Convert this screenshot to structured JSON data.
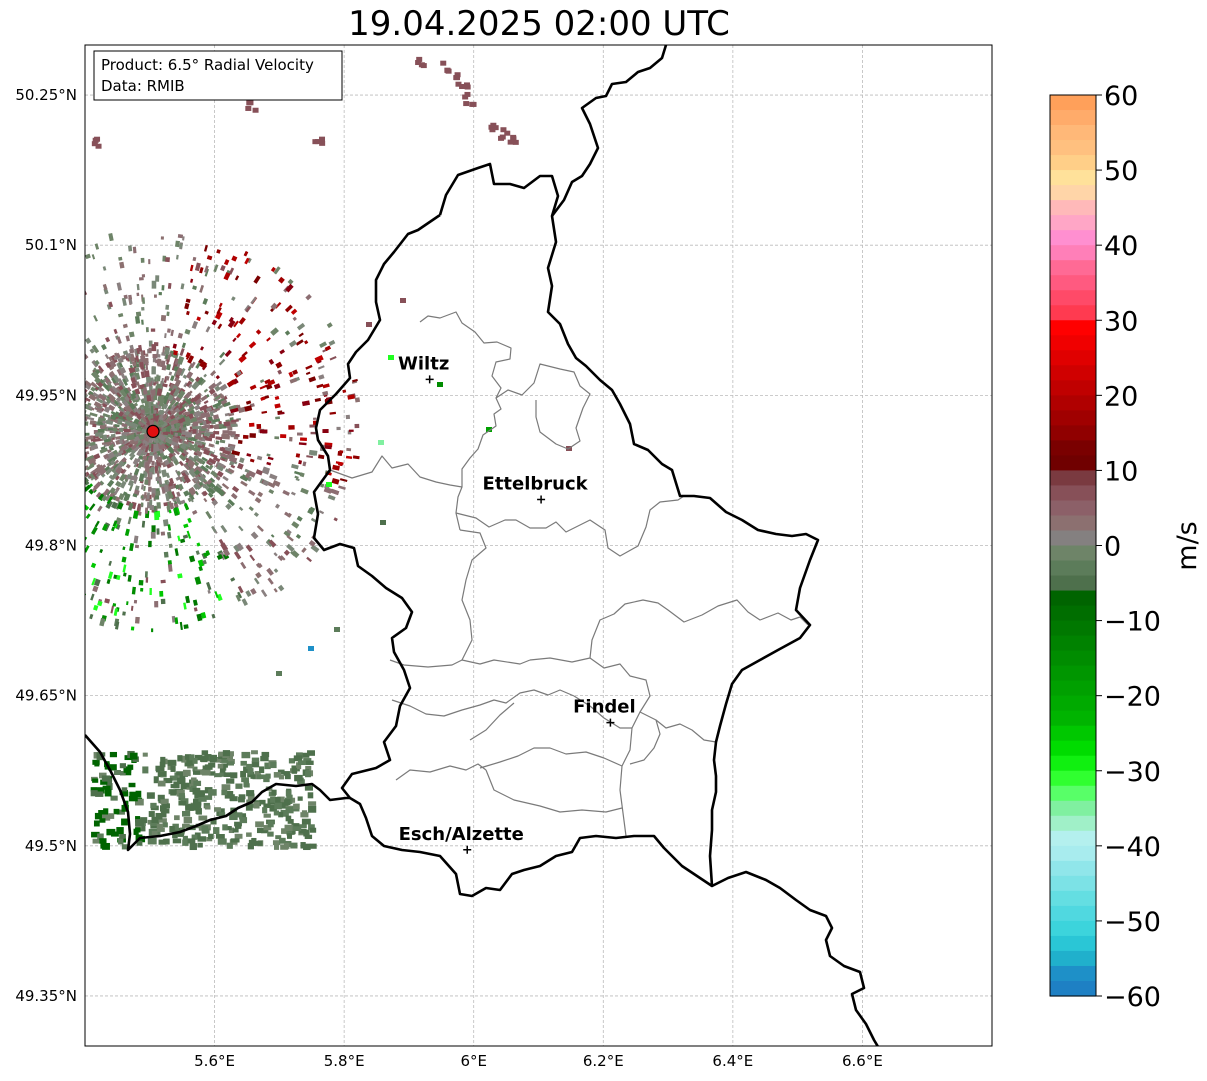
{
  "title": "19.04.2025 02:00 UTC",
  "info_box": {
    "product_line": "Product: 6.5° Radial Velocity",
    "data_line": "Data: RMIB"
  },
  "map": {
    "lon_ticks": [
      {
        "value": 5.6,
        "label": "5.6°E"
      },
      {
        "value": 5.8,
        "label": "5.8°E"
      },
      {
        "value": 6.0,
        "label": "6°E"
      },
      {
        "value": 6.2,
        "label": "6.2°E"
      },
      {
        "value": 6.4,
        "label": "6.4°E"
      },
      {
        "value": 6.6,
        "label": "6.6°E"
      }
    ],
    "lat_ticks": [
      {
        "value": 50.25,
        "label": "50.25°N"
      },
      {
        "value": 50.1,
        "label": "50.1°N"
      },
      {
        "value": 49.95,
        "label": "49.95°N"
      },
      {
        "value": 49.8,
        "label": "49.8°N"
      },
      {
        "value": 49.65,
        "label": "49.65°N"
      },
      {
        "value": 49.5,
        "label": "49.5°N"
      },
      {
        "value": 49.35,
        "label": "49.35°N"
      }
    ],
    "extent": {
      "lon_min": 5.4,
      "lon_max": 6.8,
      "lat_min": 49.3,
      "lat_max": 50.3
    },
    "grid": true,
    "radar_site": {
      "lon": 5.505,
      "lat": 49.914,
      "color": "#e01010"
    },
    "cities": [
      {
        "name": "Wiltz",
        "lon": 5.932,
        "lat": 49.966
      },
      {
        "name": "Ettelbruck",
        "lon": 6.104,
        "lat": 49.846
      },
      {
        "name": "Findel",
        "lon": 6.211,
        "lat": 49.623
      },
      {
        "name": "Esch/Alzette",
        "lon": 5.99,
        "lat": 49.496
      }
    ]
  },
  "colorbar": {
    "label": "m/s",
    "min": -60,
    "max": 60,
    "ticks": [
      {
        "value": 60,
        "label": "60"
      },
      {
        "value": 50,
        "label": "50"
      },
      {
        "value": 40,
        "label": "40"
      },
      {
        "value": 30,
        "label": "30"
      },
      {
        "value": 20,
        "label": "20"
      },
      {
        "value": 10,
        "label": "10"
      },
      {
        "value": 0,
        "label": "0"
      },
      {
        "value": -10,
        "label": "−10"
      },
      {
        "value": -20,
        "label": "−20"
      },
      {
        "value": -30,
        "label": "−30"
      },
      {
        "value": -40,
        "label": "−40"
      },
      {
        "value": -50,
        "label": "−50"
      },
      {
        "value": -60,
        "label": "−60"
      }
    ],
    "colors_top_to_bottom": [
      "#ffa05a",
      "#ffab6a",
      "#ffb878",
      "#ffc07f",
      "#ffcf88",
      "#ffe19a",
      "#ffd5a8",
      "#ffb9b9",
      "#ffa6c6",
      "#ff8fd0",
      "#ff7fb8",
      "#ff6a95",
      "#ff5a80",
      "#ff4a68",
      "#ff3a50",
      "#ff0000",
      "#f00000",
      "#e00000",
      "#d00000",
      "#c00000",
      "#b00000",
      "#a00000",
      "#900000",
      "#7a0000",
      "#700000",
      "#7a3a40",
      "#875058",
      "#8c6068",
      "#8c7070",
      "#848080",
      "#6e8468",
      "#5c7c5a",
      "#4e704c",
      "#006400",
      "#006e00",
      "#007800",
      "#008200",
      "#008c00",
      "#009600",
      "#00a000",
      "#00aa00",
      "#00b400",
      "#00c800",
      "#00dc00",
      "#10f010",
      "#30ff30",
      "#58ff68",
      "#80f0a0",
      "#a0f0c8",
      "#b4f0ee",
      "#a8ecee",
      "#90e6ea",
      "#7ce2e6",
      "#64dee2",
      "#50d8e0",
      "#3cd4dc",
      "#2ac6d6",
      "#20b0cc",
      "#1e90c8",
      "#1e80c4"
    ]
  },
  "echo_colors": {
    "receding": [
      "#7a0000",
      "#900000",
      "#a00000",
      "#b00000",
      "#c00000",
      "#880010"
    ],
    "near_zero": [
      "#8c6e72",
      "#8a8080",
      "#7a8878",
      "#6e8468",
      "#5c7c5a",
      "#875058",
      "#8c7070"
    ],
    "approaching": [
      "#00a000",
      "#008c00",
      "#00c800",
      "#20ff20",
      "#007800",
      "#4e704c"
    ]
  }
}
